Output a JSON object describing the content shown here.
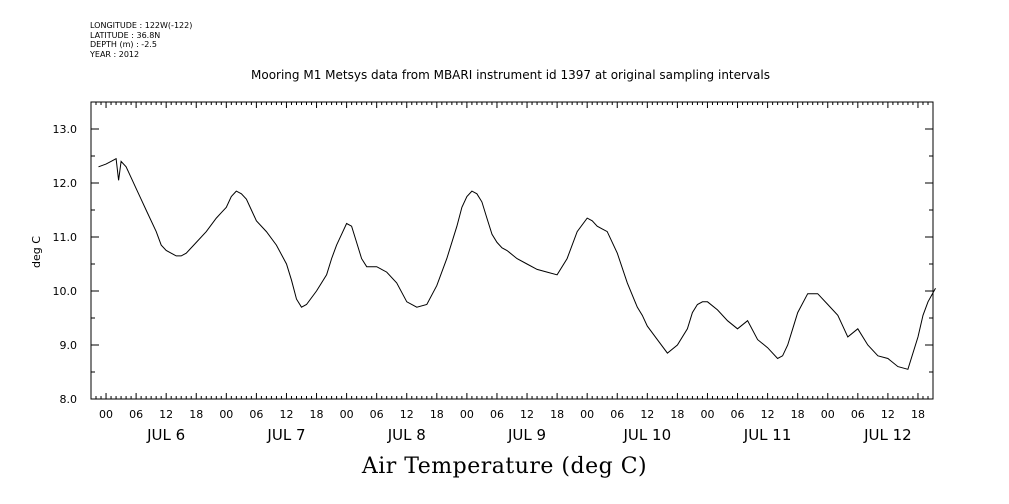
{
  "metadata": {
    "longitude": "LONGITUDE : 122W(-122)",
    "latitude": "LATITUDE : 36.8N",
    "depth": "DEPTH (m) : -2.5",
    "year": "YEAR : 2012"
  },
  "chart_data": {
    "type": "line",
    "title": "Mooring M1 Metsys data from MBARI instrument id 1397 at original sampling intervals",
    "xlabel": "Air Temperature (deg C)",
    "ylabel": "deg C",
    "ylim": [
      8.0,
      13.0
    ],
    "yticks": [
      "8.0",
      "9.0",
      "10.0",
      "11.0",
      "12.0",
      "13.0"
    ],
    "xlim_hours": [
      -3,
      165
    ],
    "hour_tick_labels": [
      "00",
      "06",
      "12",
      "18",
      "00",
      "06",
      "12",
      "18",
      "00",
      "06",
      "12",
      "18",
      "00",
      "06",
      "12",
      "18",
      "00",
      "06",
      "12",
      "18",
      "00",
      "06",
      "12",
      "18",
      "00",
      "06",
      "12",
      "18"
    ],
    "day_labels": [
      "JUL  6",
      "JUL  7",
      "JUL  8",
      "JUL  9",
      "JUL 10",
      "JUL 11",
      "JUL 12"
    ],
    "series": [
      {
        "name": "",
        "x": [
          -1.5,
          0,
          1,
          2,
          2.5,
          3,
          4,
          5,
          6,
          7,
          8,
          10,
          11,
          12,
          13,
          14,
          15,
          16,
          18,
          20,
          22,
          23,
          24,
          25,
          26,
          27,
          28,
          29,
          30,
          32,
          34,
          36,
          37,
          38,
          39,
          40,
          42,
          44,
          45,
          46,
          47,
          48,
          49,
          50,
          51,
          52,
          54,
          56,
          58,
          60,
          62,
          64,
          66,
          68,
          70,
          71,
          72,
          73,
          74,
          75,
          76,
          77,
          78,
          79,
          80,
          82,
          84,
          86,
          88,
          90,
          92,
          94,
          96,
          97,
          98,
          99,
          100,
          102,
          104,
          106,
          107,
          108,
          110,
          112,
          114,
          116,
          117,
          118,
          119,
          120,
          122,
          124,
          126,
          128,
          130,
          132,
          134,
          135,
          136,
          137,
          138,
          140,
          142,
          144,
          146,
          147,
          148,
          150,
          152,
          154,
          156,
          158,
          160,
          162,
          163,
          164,
          165.5
        ],
        "y": [
          12.3,
          12.35,
          12.4,
          12.45,
          12.05,
          12.4,
          12.3,
          12.1,
          11.9,
          11.7,
          11.5,
          11.1,
          10.85,
          10.75,
          10.7,
          10.65,
          10.65,
          10.7,
          10.9,
          11.1,
          11.35,
          11.45,
          11.55,
          11.75,
          11.85,
          11.8,
          11.7,
          11.5,
          11.3,
          11.1,
          10.85,
          10.5,
          10.2,
          9.85,
          9.7,
          9.75,
          10.0,
          10.3,
          10.6,
          10.85,
          11.05,
          11.25,
          11.2,
          10.9,
          10.6,
          10.45,
          10.45,
          10.35,
          10.15,
          9.8,
          9.7,
          9.75,
          10.1,
          10.6,
          11.2,
          11.55,
          11.75,
          11.85,
          11.8,
          11.65,
          11.35,
          11.05,
          10.9,
          10.8,
          10.75,
          10.6,
          10.5,
          10.4,
          10.35,
          10.3,
          10.6,
          11.1,
          11.35,
          11.3,
          11.2,
          11.15,
          11.1,
          10.7,
          10.15,
          9.7,
          9.55,
          9.35,
          9.1,
          8.85,
          9.0,
          9.3,
          9.6,
          9.75,
          9.8,
          9.8,
          9.65,
          9.45,
          9.3,
          9.45,
          9.1,
          8.95,
          8.75,
          8.8,
          9.0,
          9.3,
          9.6,
          9.95,
          9.95,
          9.75,
          9.55,
          9.35,
          9.15,
          9.3,
          9.0,
          8.8,
          8.75,
          8.6,
          8.55,
          9.15,
          9.55,
          9.8,
          10.05
        ]
      }
    ],
    "grid": false,
    "legend": "none"
  }
}
